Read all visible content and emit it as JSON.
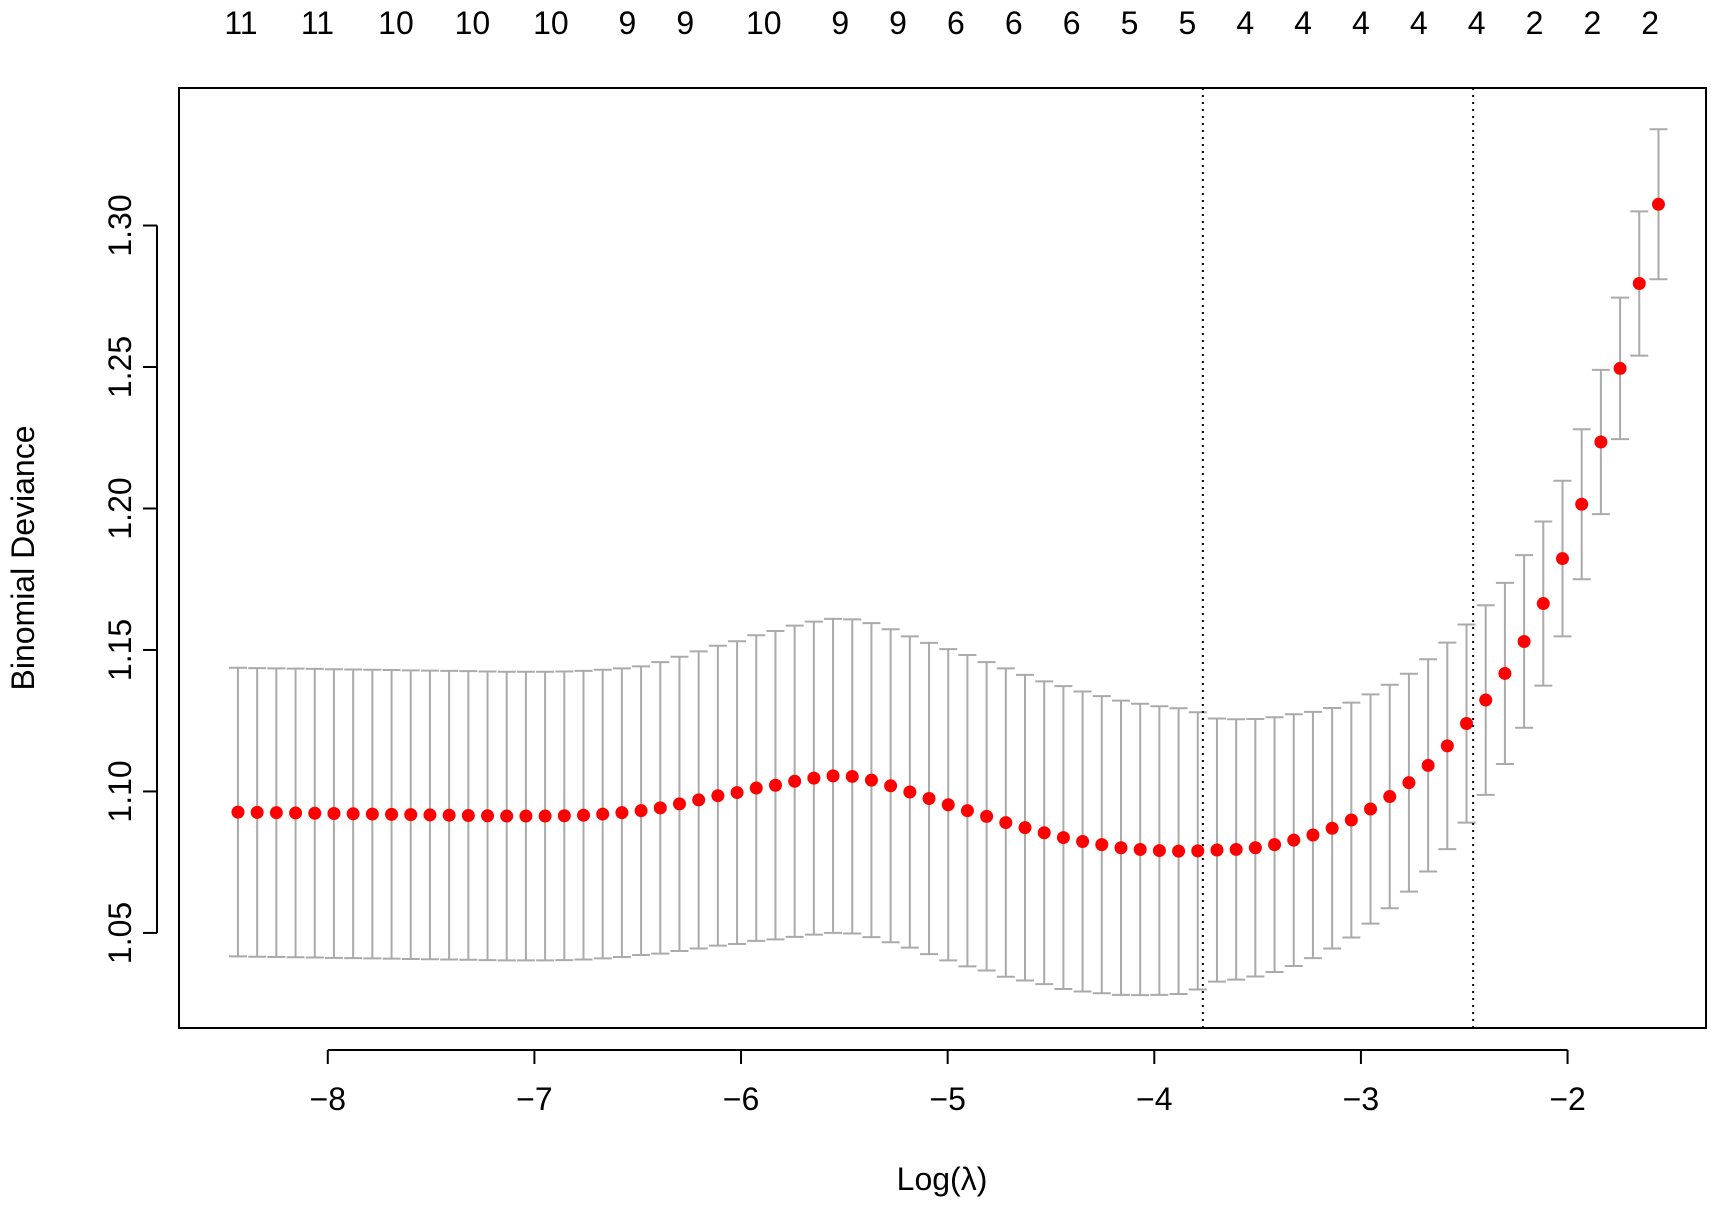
{
  "chart_data": {
    "type": "scatter",
    "title": "",
    "xlabel": "Log(λ)",
    "ylabel": "Binomial Deviance",
    "xlim": [
      -8.72,
      -1.33
    ],
    "ylim": [
      1.0164,
      1.3486
    ],
    "x_ticks": [
      -8,
      -7,
      -6,
      -5,
      -4,
      -3,
      -2
    ],
    "x_tick_labels": [
      "−8",
      "−7",
      "−6",
      "−5",
      "−4",
      "−3",
      "−2"
    ],
    "y_ticks": [
      1.05,
      1.1,
      1.15,
      1.2,
      1.25,
      1.3
    ],
    "y_tick_labels": [
      "1.05",
      "1.10",
      "1.15",
      "1.20",
      "1.25",
      "1.30"
    ],
    "grid": false,
    "legend": "none",
    "log_lambda_start": -1.56,
    "log_lambda_step": -0.0929,
    "cv_mean": [
      1.3075,
      1.2795,
      1.2495,
      1.2235,
      1.2015,
      1.1823,
      1.1664,
      1.153,
      1.1417,
      1.1323,
      1.124,
      1.1161,
      1.1092,
      1.1031,
      1.0982,
      1.0938,
      1.0899,
      1.087,
      1.0846,
      1.0828,
      1.0812,
      1.0801,
      1.0795,
      1.0793,
      1.079,
      1.0789,
      1.0791,
      1.0795,
      1.0801,
      1.0812,
      1.0823,
      1.0837,
      1.0854,
      1.0872,
      1.089,
      1.0912,
      1.0932,
      1.0953,
      1.0975,
      1.0998,
      1.102,
      1.104,
      1.1053,
      1.1055,
      1.1047,
      1.1036,
      1.1022,
      1.1012,
      1.0996,
      1.0985,
      1.097,
      1.0956,
      1.0942,
      1.0932,
      1.0925,
      1.092,
      1.0916,
      1.0914,
      1.0913,
      1.0913,
      1.0913,
      1.0914,
      1.0915,
      1.0916,
      1.0917,
      1.0918,
      1.0919,
      1.092,
      1.0921,
      1.0922,
      1.0923,
      1.0924,
      1.0925,
      1.0926,
      1.0927
    ],
    "cv_half_width": [
      0.0265,
      0.0255,
      0.025,
      0.0255,
      0.0265,
      0.0275,
      0.029,
      0.0305,
      0.032,
      0.0335,
      0.035,
      0.0365,
      0.0375,
      0.0385,
      0.0395,
      0.0405,
      0.0415,
      0.0425,
      0.0435,
      0.0445,
      0.045,
      0.0455,
      0.046,
      0.0465,
      0.049,
      0.0505,
      0.051,
      0.0515,
      0.052,
      0.0525,
      0.053,
      0.0535,
      0.0535,
      0.054,
      0.0545,
      0.0545,
      0.055,
      0.055,
      0.055,
      0.055,
      0.0553,
      0.0555,
      0.0555,
      0.0555,
      0.0553,
      0.055,
      0.0545,
      0.054,
      0.0535,
      0.053,
      0.0525,
      0.052,
      0.0515,
      0.051,
      0.051,
      0.051,
      0.051,
      0.051,
      0.051,
      0.051,
      0.051,
      0.051,
      0.051,
      0.051,
      0.051,
      0.051,
      0.051,
      0.051,
      0.051,
      0.051,
      0.051,
      0.051,
      0.051,
      0.051,
      0.051
    ],
    "vlines": [
      {
        "name": "lambda.min",
        "x": -3.765
      },
      {
        "name": "lambda.1se",
        "x": -2.457
      }
    ],
    "top_axis": {
      "positions": [
        -8.42,
        -8.05,
        -7.67,
        -7.3,
        -6.92,
        -6.55,
        -6.27,
        -5.89,
        -5.52,
        -5.24,
        -4.96,
        -4.68,
        -4.4,
        -4.12,
        -3.84,
        -3.56,
        -3.28,
        -3.0,
        -2.72,
        -2.44,
        -2.16,
        -1.88,
        -1.6
      ],
      "labels": [
        "11",
        "11",
        "10",
        "10",
        "10",
        "9",
        "9",
        "10",
        "9",
        "9",
        "6",
        "6",
        "6",
        "5",
        "5",
        "4",
        "4",
        "4",
        "4",
        "4",
        "2",
        "2",
        "2"
      ]
    },
    "colors": {
      "point": "#ff0000",
      "errorbar": "#aaaaaa",
      "vline": "#000000"
    }
  }
}
